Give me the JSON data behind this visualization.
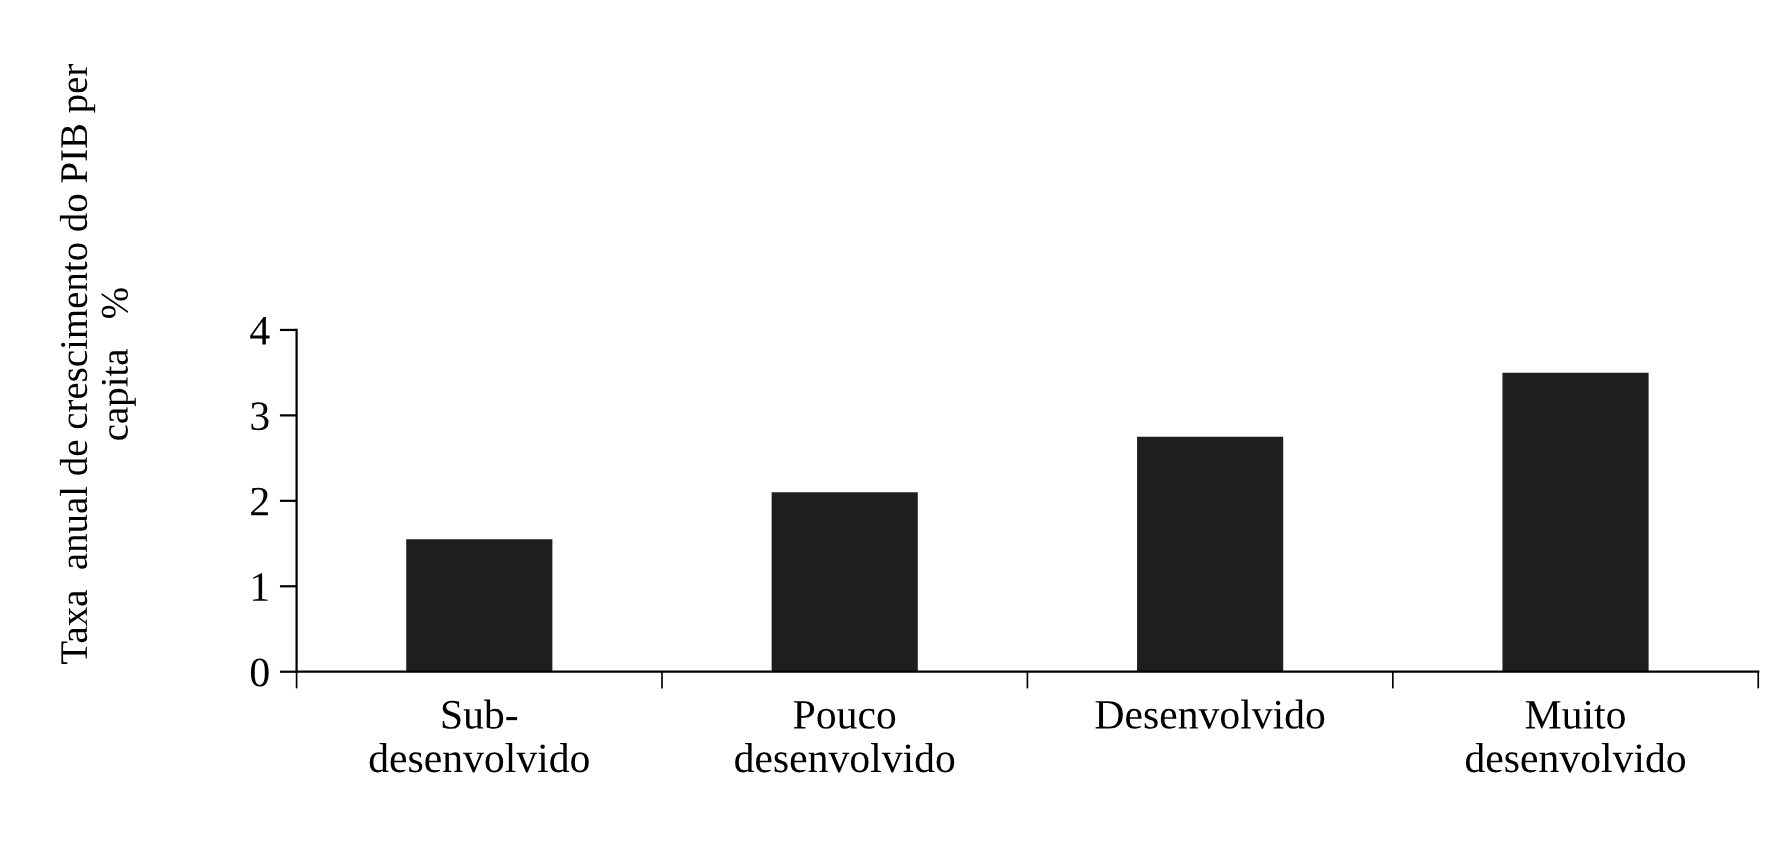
{
  "chart_data": {
    "type": "bar",
    "ylabel": "Taxa  anual de crescimento do PIB per\ncapita   %",
    "categories": [
      "Sub-\ndesenvolvido",
      "Pouco\ndesenvolvido",
      "Desenvolvido",
      "Muito\ndesenvolvido"
    ],
    "values": [
      1.55,
      2.1,
      2.75,
      3.5
    ],
    "color": "#1e1e1e",
    "ylim": [
      0,
      4
    ],
    "yticks": [
      0,
      1,
      2,
      3,
      4
    ],
    "grid": false,
    "legend": false
  }
}
